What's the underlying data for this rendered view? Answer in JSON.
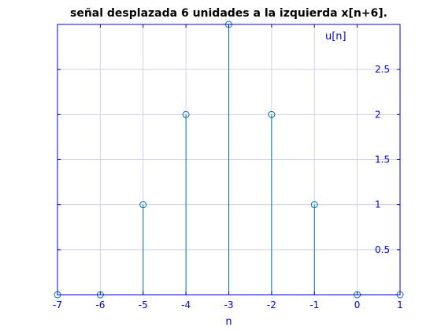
{
  "chart_data": {
    "type": "stem",
    "title": "señal desplazada 6 unidades a la izquierda x[n+6].",
    "xlabel": "n",
    "ylabel": "",
    "legend": "u[n]",
    "x": [
      -7,
      -6,
      -5,
      -4,
      -3,
      -2,
      -1,
      0,
      1
    ],
    "y": [
      0,
      0,
      1,
      2,
      3,
      2,
      1,
      0,
      0
    ],
    "xlim": [
      -7,
      1
    ],
    "ylim": [
      0,
      3
    ],
    "xticks": [
      "-7",
      "-6",
      "-5",
      "-4",
      "-3",
      "-2",
      "-1",
      "0",
      "1"
    ],
    "yticks": [
      "0.5",
      "1",
      "1.5",
      "2",
      "2.5"
    ],
    "grid": true,
    "axis_location": "right",
    "colors": {
      "axes": "#0000ff",
      "grid": "#d0d0ee",
      "stem": "#0072bd",
      "title": "#000000"
    }
  }
}
